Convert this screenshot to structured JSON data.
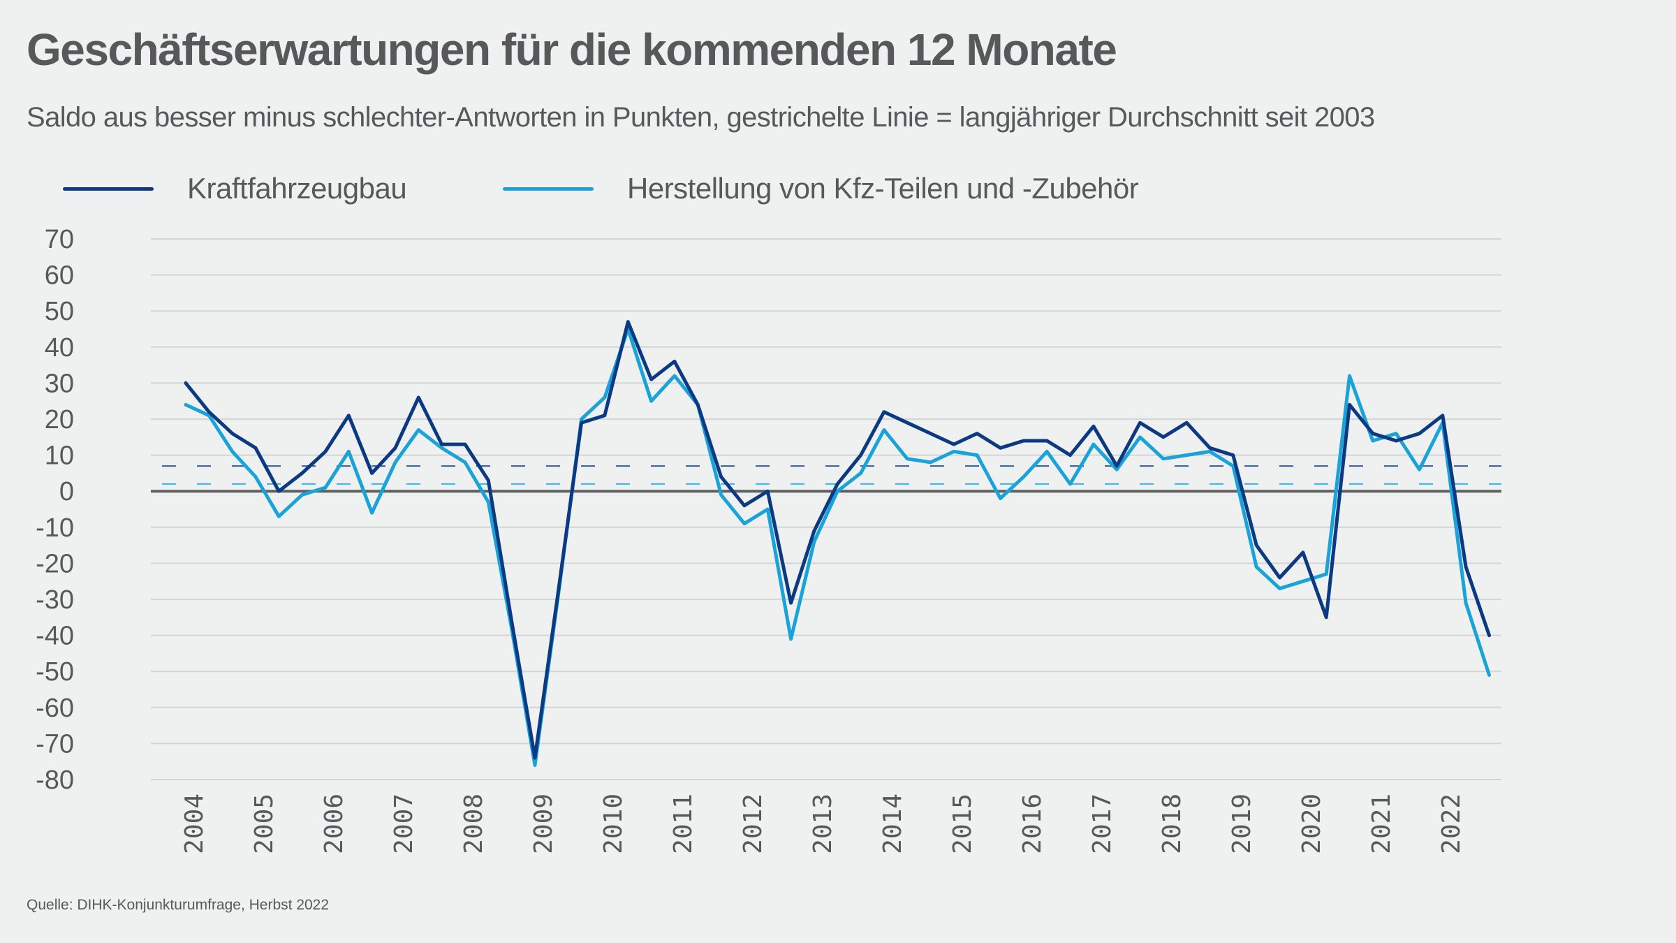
{
  "header": {
    "title": "Geschäftserwartungen für die kommenden 12 Monate",
    "subtitle": "Saldo aus besser minus schlechter-Antworten in Punkten, gestrichelte Linie = langjähriger Durchschnitt seit 2003"
  },
  "legend": [
    {
      "label": "Kraftfahrzeugbau",
      "color": "#0b3a82"
    },
    {
      "label": "Herstellung von Kfz-Teilen und -Zubehör",
      "color": "#1aa3d8"
    }
  ],
  "source": "Quelle: DIHK-Konjunkturumfrage, Herbst 2022",
  "chart_data": {
    "type": "line",
    "title": "Geschäftserwartungen für die kommenden 12 Monate",
    "subtitle": "Saldo aus besser minus schlechter-Antworten in Punkten, gestrichelte Linie = langjähriger Durchschnitt seit 2003",
    "xlabel": "",
    "ylabel": "",
    "ylim": [
      -80,
      70
    ],
    "yticks": [
      70,
      60,
      50,
      40,
      30,
      20,
      10,
      0,
      -10,
      -20,
      -30,
      -40,
      -50,
      -60,
      -70,
      -80
    ],
    "year_labels": [
      "2004",
      "2005",
      "2006",
      "2007",
      "2008",
      "2009",
      "2010",
      "2011",
      "2012",
      "2013",
      "2014",
      "2015",
      "2016",
      "2017",
      "2018",
      "2019",
      "2020",
      "2021",
      "2022"
    ],
    "points_per_year": 3,
    "grid": true,
    "legend_position": "top-left",
    "series": [
      {
        "name": "Kraftfahrzeugbau",
        "color": "#0b3a82",
        "long_term_average": 7,
        "values": [
          30,
          22,
          16,
          12,
          0,
          5,
          11,
          21,
          5,
          12,
          26,
          13,
          13,
          3,
          -36,
          -74,
          -28,
          19,
          21,
          47,
          31,
          36,
          24,
          4,
          -4,
          0,
          -31,
          -11,
          2,
          10,
          22,
          19,
          16,
          13,
          16,
          12,
          14,
          14,
          10,
          18,
          7,
          19,
          15,
          19,
          12,
          10,
          -15,
          -24,
          -17,
          -35,
          24,
          16,
          14,
          16,
          21,
          -21,
          -40
        ]
      },
      {
        "name": "Herstellung von Kfz-Teilen und -Zubehör",
        "color": "#1aa3d8",
        "long_term_average": 2,
        "values": [
          24,
          21,
          11,
          4,
          -7,
          -1,
          1,
          11,
          -6,
          8,
          17,
          12,
          8,
          -3,
          -38,
          -76,
          -29,
          20,
          26,
          45,
          25,
          32,
          24,
          -1,
          -9,
          -5,
          -41,
          -14,
          0,
          5,
          17,
          9,
          8,
          11,
          10,
          -2,
          4,
          11,
          2,
          13,
          6,
          15,
          9,
          10,
          11,
          7,
          -21,
          -27,
          -25,
          -23,
          32,
          14,
          16,
          6,
          19,
          -31,
          -51
        ]
      }
    ]
  }
}
